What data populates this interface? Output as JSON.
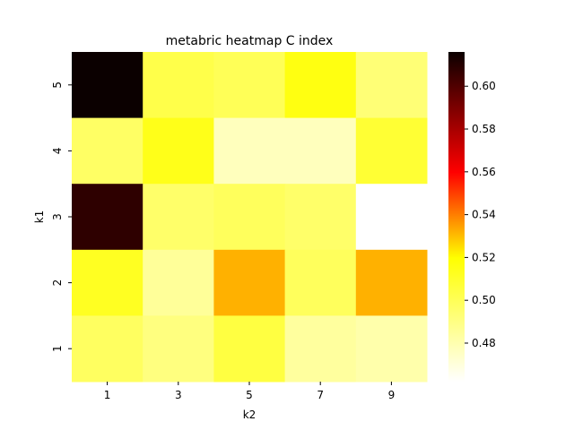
{
  "chart_data": {
    "type": "heatmap",
    "title": "metabric heatmap C index",
    "xlabel": "k2",
    "ylabel": "k1",
    "x_categories": [
      "1",
      "3",
      "5",
      "7",
      "9"
    ],
    "y_categories": [
      "5",
      "4",
      "3",
      "2",
      "1"
    ],
    "values": [
      [
        0.616,
        0.503,
        0.5,
        0.516,
        0.493
      ],
      [
        0.497,
        0.514,
        0.477,
        0.477,
        0.508
      ],
      [
        0.608,
        0.496,
        0.499,
        0.496,
        0.46
      ],
      [
        0.512,
        0.485,
        0.532,
        0.499,
        0.532
      ],
      [
        0.498,
        0.491,
        0.505,
        0.484,
        0.481
      ]
    ],
    "colormap": "hot_r",
    "color_range": [
      0.462,
      0.616
    ],
    "colorbar_ticks": [
      "0.48",
      "0.50",
      "0.52",
      "0.54",
      "0.56",
      "0.58",
      "0.60"
    ],
    "colorbar_tick_values": [
      0.48,
      0.5,
      0.52,
      0.54,
      0.56,
      0.58,
      0.6
    ],
    "grid": false,
    "legend": "colorbar-right"
  }
}
